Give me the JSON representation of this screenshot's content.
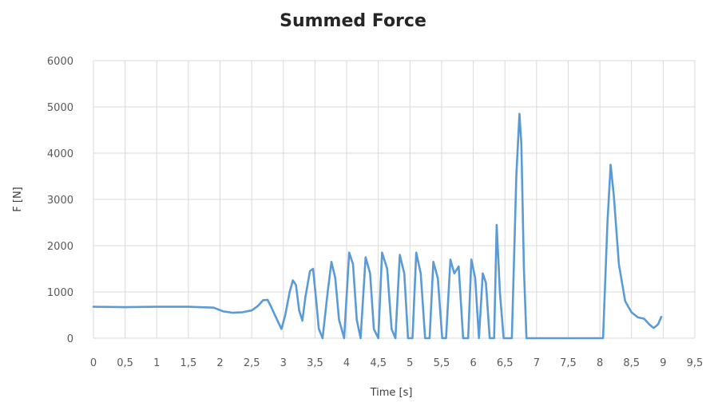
{
  "chart_data": {
    "type": "line",
    "title": "Summed Force",
    "xlabel": "Time [s]",
    "ylabel": "F [N]",
    "xlim": [
      0,
      9.5
    ],
    "ylim": [
      0,
      6000
    ],
    "x_ticks": [
      "0",
      "0,5",
      "1",
      "1,5",
      "2",
      "2,5",
      "3",
      "3,5",
      "4",
      "4,5",
      "5",
      "5,5",
      "6",
      "6,5",
      "7",
      "7,5",
      "8",
      "8,5",
      "9",
      "9,5"
    ],
    "y_ticks": [
      "0",
      "1000",
      "2000",
      "3000",
      "4000",
      "5000",
      "6000"
    ],
    "grid": true,
    "line_color": "#5b9bd5",
    "series": [
      {
        "x": [
          0,
          0.5,
          1.0,
          1.5,
          1.9,
          2.05,
          2.2,
          2.35,
          2.5,
          2.6,
          2.68,
          2.75,
          2.8,
          2.9,
          2.97,
          3.03,
          3.1,
          3.15,
          3.2,
          3.25,
          3.3,
          3.35,
          3.42,
          3.47,
          3.52,
          3.56,
          3.62,
          3.7,
          3.76,
          3.82,
          3.88,
          3.96,
          4.04,
          4.1,
          4.16,
          4.22,
          4.3,
          4.37,
          4.43,
          4.5,
          4.56,
          4.64,
          4.71,
          4.77,
          4.84,
          4.91,
          4.97,
          5.04,
          5.1,
          5.17,
          5.24,
          5.31,
          5.37,
          5.44,
          5.51,
          5.57,
          5.64,
          5.7,
          5.77,
          5.84,
          5.92,
          5.97,
          6.03,
          6.09,
          6.15,
          6.2,
          6.26,
          6.33,
          6.37,
          6.42,
          6.48,
          6.54,
          6.61,
          6.68,
          6.73,
          6.76,
          6.8,
          6.84,
          6.89,
          6.94,
          7.0,
          7.5,
          8.05,
          8.12,
          8.17,
          8.22,
          8.3,
          8.4,
          8.5,
          8.6,
          8.7,
          8.78,
          8.85,
          8.92,
          8.97
        ],
        "y": [
          680,
          670,
          680,
          680,
          660,
          580,
          550,
          560,
          600,
          700,
          820,
          830,
          700,
          400,
          200,
          500,
          1000,
          1250,
          1150,
          600,
          380,
          900,
          1450,
          1500,
          800,
          200,
          0,
          1000,
          1650,
          1300,
          400,
          0,
          1850,
          1600,
          400,
          0,
          1750,
          1400,
          200,
          0,
          1850,
          1500,
          200,
          0,
          1800,
          1400,
          0,
          0,
          1850,
          1400,
          0,
          0,
          1650,
          1300,
          0,
          0,
          1700,
          1400,
          1550,
          0,
          0,
          1700,
          1300,
          0,
          1400,
          1200,
          0,
          0,
          2450,
          1000,
          0,
          0,
          0,
          3500,
          4850,
          4200,
          1500,
          0,
          0,
          0,
          0,
          0,
          0,
          2500,
          3750,
          3100,
          1600,
          800,
          560,
          450,
          420,
          300,
          220,
          300,
          460
        ]
      }
    ]
  }
}
